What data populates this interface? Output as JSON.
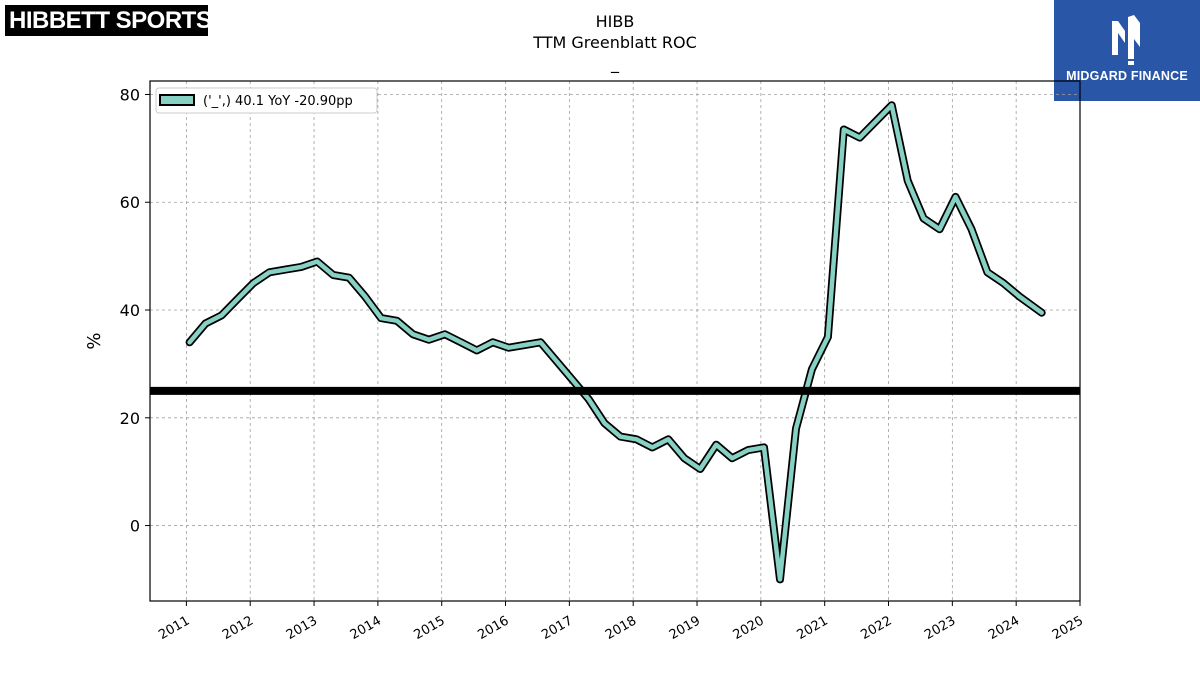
{
  "logos": {
    "left_text": "HIBBETT SPORTS",
    "left_mark": "®",
    "right_text": "MIDGARD FINANCE"
  },
  "colors": {
    "line_fill": "#87d1c4",
    "line_edge": "#000000",
    "reference_line": "#000000",
    "grid": "#a0a0a0",
    "brand_blue": "#2a56a8"
  },
  "chart_data": {
    "type": "line",
    "title": "HIBB",
    "subtitle": "TTM Greenblatt ROC",
    "subtitle2": "_",
    "ylabel": "%",
    "xlabel": "",
    "xlim": [
      2010.43,
      2025.0
    ],
    "ylim": [
      -14,
      82.5
    ],
    "yticks": [
      0,
      20,
      40,
      60,
      80
    ],
    "xticks": [
      "2011",
      "2012",
      "2013",
      "2014",
      "2015",
      "2016",
      "2017",
      "2018",
      "2019",
      "2020",
      "2021",
      "2022",
      "2023",
      "2024",
      "2025"
    ],
    "grid": true,
    "legend_position": "top-left",
    "reference_line": 25,
    "series": [
      {
        "name": "('_',) 40.1 YoY -20.90pp",
        "x": [
          2011.05,
          2011.3,
          2011.55,
          2011.8,
          2012.05,
          2012.3,
          2012.55,
          2012.8,
          2013.05,
          2013.3,
          2013.55,
          2013.8,
          2014.05,
          2014.3,
          2014.55,
          2014.8,
          2015.05,
          2015.3,
          2015.55,
          2015.8,
          2016.05,
          2016.3,
          2016.55,
          2016.8,
          2017.05,
          2017.3,
          2017.55,
          2017.8,
          2018.05,
          2018.3,
          2018.55,
          2018.8,
          2019.05,
          2019.3,
          2019.55,
          2019.8,
          2020.05,
          2020.3,
          2020.55,
          2020.8,
          2021.05,
          2021.3,
          2021.55,
          2021.8,
          2022.05,
          2022.3,
          2022.55,
          2022.8,
          2023.05,
          2023.3,
          2023.55,
          2023.8,
          2024.05,
          2024.4
        ],
        "y": [
          34,
          37.5,
          39,
          42,
          45,
          47,
          47.5,
          48,
          49,
          46.5,
          46,
          42.5,
          38.5,
          38,
          35.5,
          34.5,
          35.5,
          34,
          32.5,
          34,
          33,
          33.5,
          34,
          30.5,
          27,
          23.5,
          19,
          16.5,
          16,
          14.5,
          16,
          12.5,
          10.5,
          15,
          12.5,
          14,
          14.5,
          -10,
          18,
          29,
          35,
          73.5,
          72,
          75,
          78,
          64,
          57,
          55,
          61,
          55,
          47,
          45,
          42.5,
          39.5
        ]
      }
    ]
  }
}
